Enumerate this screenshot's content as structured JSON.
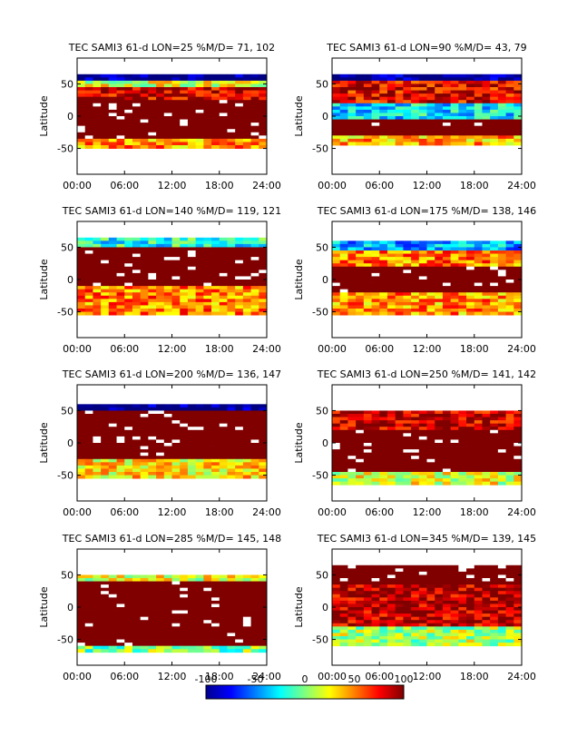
{
  "figure": {
    "ylabel": "Latitude",
    "xticks": [
      "00:00",
      "06:00",
      "12:00",
      "18:00",
      "24:00"
    ],
    "yticks": [
      50,
      0,
      -50
    ],
    "ylim": [
      -90,
      90
    ],
    "xlim": [
      0,
      24
    ]
  },
  "colorbar": {
    "ticks": [
      "-100",
      "-50",
      "0",
      "50",
      "100"
    ],
    "range": [
      -100,
      100
    ],
    "colormap": "jet",
    "saturation_color": "#800000"
  },
  "chart_data": [
    {
      "type": "heatmap",
      "title": "TEC SAMI3 61-d LON=25 %M/D=  71, 102",
      "lon": 25,
      "md": [
        71,
        102
      ],
      "lat_range": [
        -48,
        65
      ],
      "dominant": [
        {
          "lat_from": 56,
          "lat_to": 65,
          "value": -100
        },
        {
          "lat_from": 45,
          "lat_to": 56,
          "value": 20
        },
        {
          "lat_from": 25,
          "lat_to": 45,
          "value": 85
        },
        {
          "lat_from": -35,
          "lat_to": 25,
          "value": 100
        },
        {
          "lat_from": -48,
          "lat_to": -35,
          "value": 45
        }
      ]
    },
    {
      "type": "heatmap",
      "title": "TEC SAMI3 61-d LON=90 %M/D=  43,  79",
      "lon": 90,
      "md": [
        43,
        79
      ],
      "lat_range": [
        -45,
        65
      ],
      "dominant": [
        {
          "lat_from": 57,
          "lat_to": 65,
          "value": -100
        },
        {
          "lat_from": 20,
          "lat_to": 57,
          "value": 80
        },
        {
          "lat_from": -5,
          "lat_to": 20,
          "value": -30
        },
        {
          "lat_from": -30,
          "lat_to": -5,
          "value": 100
        },
        {
          "lat_from": -45,
          "lat_to": -30,
          "value": 40
        }
      ]
    },
    {
      "type": "heatmap",
      "title": "TEC SAMI3 61-d LON=140 %M/D=  119,  121",
      "lon": 140,
      "md": [
        119,
        121
      ],
      "lat_range": [
        -55,
        65
      ],
      "dominant": [
        {
          "lat_from": 52,
          "lat_to": 65,
          "value": -20
        },
        {
          "lat_from": -10,
          "lat_to": 52,
          "value": 100
        },
        {
          "lat_from": -55,
          "lat_to": -10,
          "value": 50
        }
      ]
    },
    {
      "type": "heatmap",
      "title": "TEC SAMI3 61-d LON=175 %M/D=  138,  146",
      "lon": 175,
      "md": [
        138,
        146
      ],
      "lat_range": [
        -55,
        60
      ],
      "dominant": [
        {
          "lat_from": 45,
          "lat_to": 60,
          "value": -40
        },
        {
          "lat_from": 20,
          "lat_to": 45,
          "value": 50
        },
        {
          "lat_from": -20,
          "lat_to": 20,
          "value": 100
        },
        {
          "lat_from": -55,
          "lat_to": -20,
          "value": 45
        }
      ]
    },
    {
      "type": "heatmap",
      "title": "TEC SAMI3 61-d LON=200 %M/D=  136,  147",
      "lon": 200,
      "md": [
        136,
        147
      ],
      "lat_range": [
        -55,
        60
      ],
      "dominant": [
        {
          "lat_from": 48,
          "lat_to": 60,
          "value": -100
        },
        {
          "lat_from": -25,
          "lat_to": 48,
          "value": 100
        },
        {
          "lat_from": -55,
          "lat_to": -25,
          "value": 30
        }
      ]
    },
    {
      "type": "heatmap",
      "title": "TEC SAMI3 61-d LON=250 %M/D=  141,  142",
      "lon": 250,
      "md": [
        141,
        142
      ],
      "lat_range": [
        -65,
        50
      ],
      "dominant": [
        {
          "lat_from": 20,
          "lat_to": 50,
          "value": 85
        },
        {
          "lat_from": -45,
          "lat_to": 20,
          "value": 100
        },
        {
          "lat_from": -65,
          "lat_to": -45,
          "value": 20
        }
      ]
    },
    {
      "type": "heatmap",
      "title": "TEC SAMI3 61-d LON=285 %M/D=  145,  148",
      "lon": 285,
      "md": [
        145,
        148
      ],
      "lat_range": [
        -70,
        50
      ],
      "dominant": [
        {
          "lat_from": 40,
          "lat_to": 50,
          "value": 20
        },
        {
          "lat_from": -60,
          "lat_to": 40,
          "value": 100
        },
        {
          "lat_from": -70,
          "lat_to": -60,
          "value": 0
        }
      ]
    },
    {
      "type": "heatmap",
      "title": "TEC SAMI3 61-d LON=345 %M/D=  139,  145",
      "lon": 345,
      "md": [
        139,
        145
      ],
      "lat_range": [
        -60,
        65
      ],
      "dominant": [
        {
          "lat_from": 35,
          "lat_to": 65,
          "value": 100
        },
        {
          "lat_from": -30,
          "lat_to": 35,
          "value": 90
        },
        {
          "lat_from": -60,
          "lat_to": -30,
          "value": 10
        }
      ]
    }
  ]
}
